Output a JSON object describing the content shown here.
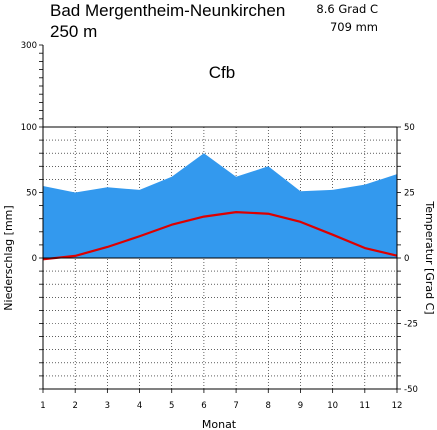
{
  "station": {
    "name": "Bad Mergentheim-Neunkirchen",
    "elevation": "250 m",
    "annual_temperature": "8.6 Grad C",
    "annual_precipitation": "709 mm",
    "climate_class": "Cfb"
  },
  "chart_data": {
    "type": "area",
    "title": "Bad Mergentheim-Neunkirchen",
    "xlabel": "Monat",
    "ylabel_left": "Niederschlag [mm]",
    "ylabel_right": "Temperatur [Grad C]",
    "x": [
      1,
      2,
      3,
      4,
      5,
      6,
      7,
      8,
      9,
      10,
      11,
      12
    ],
    "x_ticks": [
      "1",
      "2",
      "3",
      "4",
      "5",
      "6",
      "7",
      "8",
      "9",
      "10",
      "11",
      "12"
    ],
    "precip_ticks": [
      "300",
      "100",
      "50",
      "0"
    ],
    "temp_ticks": [
      "50",
      "25",
      "0",
      "-25",
      "-50"
    ],
    "precip_axis": {
      "linear_range": [
        0,
        100
      ],
      "compressed_range": [
        100,
        300
      ],
      "minor_below_zero": 10
    },
    "temp_ylim": [
      -50,
      50
    ],
    "grid": true,
    "series": [
      {
        "name": "Niederschlag",
        "kind": "area",
        "color": "#3399ee",
        "values": [
          55,
          50,
          54,
          52,
          62,
          80,
          62,
          70,
          51,
          52,
          56,
          64
        ]
      },
      {
        "name": "Temperatur",
        "kind": "line",
        "color": "#dd0000",
        "values": [
          -0.5,
          0.8,
          4.2,
          8.3,
          12.7,
          15.8,
          17.5,
          16.9,
          13.8,
          8.9,
          3.8,
          0.9
        ]
      }
    ]
  }
}
